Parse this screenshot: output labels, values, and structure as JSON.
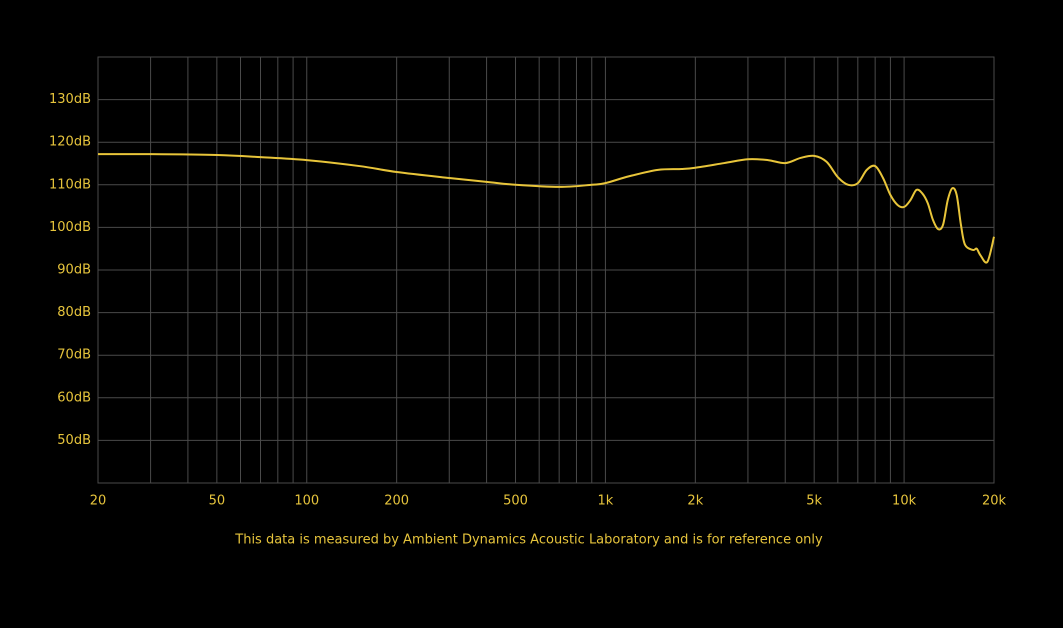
{
  "chart_data": {
    "type": "line",
    "x_scale": "log",
    "grid": true,
    "color": "#e8c53a",
    "xlim": [
      20,
      20000
    ],
    "ylim": [
      40,
      140
    ],
    "xticks": [
      20,
      50,
      100,
      200,
      500,
      {
        "value": 1000,
        "label": "1k"
      },
      {
        "value": 2000,
        "label": "2k"
      },
      {
        "value": 5000,
        "label": "5k"
      },
      {
        "value": 10000,
        "label": "10k"
      },
      {
        "value": 20000,
        "label": "20k"
      }
    ],
    "xminor_ticks": [
      30,
      40,
      60,
      70,
      80,
      90,
      300,
      400,
      600,
      700,
      800,
      900,
      3000,
      4000,
      6000,
      7000,
      8000,
      9000
    ],
    "yticks": [
      {
        "value": 50,
        "label": "50dB"
      },
      {
        "value": 60,
        "label": "60dB"
      },
      {
        "value": 70,
        "label": "70dB"
      },
      {
        "value": 80,
        "label": "80dB"
      },
      {
        "value": 90,
        "label": "90dB"
      },
      {
        "value": 100,
        "label": "100dB"
      },
      {
        "value": 110,
        "label": "110dB"
      },
      {
        "value": 120,
        "label": "120dB"
      },
      {
        "value": 130,
        "label": "130dB"
      }
    ],
    "x": [
      20,
      30,
      50,
      70,
      100,
      150,
      200,
      300,
      400,
      500,
      700,
      900,
      1000,
      1200,
      1500,
      1800,
      2000,
      2500,
      3000,
      3500,
      4000,
      4500,
      5000,
      5500,
      6000,
      6500,
      7000,
      7500,
      8000,
      8500,
      9000,
      9500,
      10000,
      10500,
      11000,
      11500,
      12000,
      12500,
      13000,
      13500,
      14000,
      14500,
      15000,
      15500,
      16000,
      17000,
      17500,
      18000,
      19000,
      20000
    ],
    "values": [
      117.2,
      117.2,
      117,
      116.5,
      115.8,
      114.4,
      113,
      111.6,
      110.7,
      110,
      109.5,
      110,
      110.4,
      112,
      113.5,
      113.7,
      114,
      115.1,
      116,
      115.8,
      115.1,
      116.3,
      116.8,
      115.4,
      111.8,
      110,
      110.4,
      113.5,
      114.4,
      111.6,
      107.6,
      105.3,
      104.8,
      106.4,
      108.8,
      108,
      105.7,
      101.7,
      99.6,
      100.6,
      106.4,
      109.2,
      107.6,
      100.6,
      95.9,
      94.7,
      95,
      93.5,
      91.9,
      97.8
    ],
    "note": "This data is measured by Ambient Dynamics Acoustic Laboratory and is for reference only"
  }
}
